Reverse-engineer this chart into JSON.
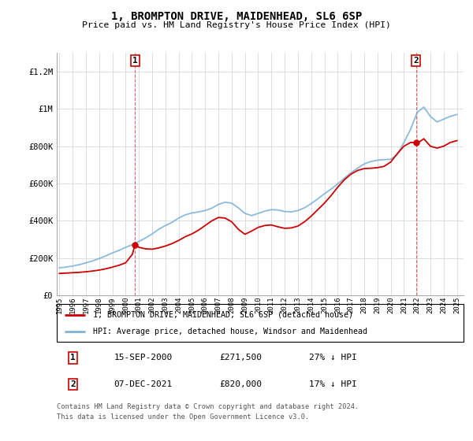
{
  "title": "1, BROMPTON DRIVE, MAIDENHEAD, SL6 6SP",
  "subtitle": "Price paid vs. HM Land Registry's House Price Index (HPI)",
  "legend_entry1": "1, BROMPTON DRIVE, MAIDENHEAD, SL6 6SP (detached house)",
  "legend_entry2": "HPI: Average price, detached house, Windsor and Maidenhead",
  "annotation1_date": "15-SEP-2000",
  "annotation1_price": "£271,500",
  "annotation1_hpi": "27% ↓ HPI",
  "annotation2_date": "07-DEC-2021",
  "annotation2_price": "£820,000",
  "annotation2_hpi": "17% ↓ HPI",
  "footnote1": "Contains HM Land Registry data © Crown copyright and database right 2024.",
  "footnote2": "This data is licensed under the Open Government Licence v3.0.",
  "ylim": [
    0,
    1300000
  ],
  "yticks": [
    0,
    200000,
    400000,
    600000,
    800000,
    1000000,
    1200000
  ],
  "ytick_labels": [
    "£0",
    "£200K",
    "£400K",
    "£600K",
    "£800K",
    "£1M",
    "£1.2M"
  ],
  "red_color": "#cc0000",
  "blue_color": "#7eb3d8",
  "marker1_x": 2000.71,
  "marker1_y": 271500,
  "marker2_x": 2021.92,
  "marker2_y": 820000,
  "hpi_years": [
    1995.0,
    1995.5,
    1996.0,
    1996.5,
    1997.0,
    1997.5,
    1998.0,
    1998.5,
    1999.0,
    1999.5,
    2000.0,
    2000.5,
    2001.0,
    2001.5,
    2002.0,
    2002.5,
    2003.0,
    2003.5,
    2004.0,
    2004.5,
    2005.0,
    2005.5,
    2006.0,
    2006.5,
    2007.0,
    2007.5,
    2008.0,
    2008.5,
    2009.0,
    2009.5,
    2010.0,
    2010.5,
    2011.0,
    2011.5,
    2012.0,
    2012.5,
    2013.0,
    2013.5,
    2014.0,
    2014.5,
    2015.0,
    2015.5,
    2016.0,
    2016.5,
    2017.0,
    2017.5,
    2018.0,
    2018.5,
    2019.0,
    2019.5,
    2020.0,
    2020.5,
    2021.0,
    2021.5,
    2022.0,
    2022.5,
    2023.0,
    2023.5,
    2024.0,
    2024.5,
    2025.0
  ],
  "hpi_values": [
    148000,
    152000,
    158000,
    165000,
    175000,
    185000,
    198000,
    212000,
    228000,
    242000,
    258000,
    272000,
    290000,
    308000,
    330000,
    355000,
    375000,
    392000,
    415000,
    432000,
    442000,
    448000,
    455000,
    468000,
    488000,
    500000,
    495000,
    470000,
    440000,
    428000,
    440000,
    452000,
    460000,
    458000,
    450000,
    448000,
    455000,
    470000,
    492000,
    518000,
    545000,
    570000,
    598000,
    628000,
    658000,
    682000,
    705000,
    718000,
    725000,
    728000,
    730000,
    755000,
    820000,
    890000,
    980000,
    1010000,
    960000,
    930000,
    945000,
    960000,
    970000
  ],
  "red_years": [
    1995.0,
    1995.5,
    1996.0,
    1996.5,
    1997.0,
    1997.5,
    1998.0,
    1998.5,
    1999.0,
    1999.5,
    2000.0,
    2000.5,
    2000.71,
    2001.0,
    2001.5,
    2002.0,
    2002.5,
    2003.0,
    2003.5,
    2004.0,
    2004.5,
    2005.0,
    2005.5,
    2006.0,
    2006.5,
    2007.0,
    2007.5,
    2008.0,
    2008.5,
    2009.0,
    2009.5,
    2010.0,
    2010.5,
    2011.0,
    2011.5,
    2012.0,
    2012.5,
    2013.0,
    2013.5,
    2014.0,
    2014.5,
    2015.0,
    2015.5,
    2016.0,
    2016.5,
    2017.0,
    2017.5,
    2018.0,
    2018.5,
    2019.0,
    2019.5,
    2020.0,
    2020.5,
    2021.0,
    2021.5,
    2021.92,
    2022.0,
    2022.5,
    2023.0,
    2023.5,
    2024.0,
    2024.5,
    2025.0
  ],
  "red_values": [
    118000,
    120000,
    122000,
    124000,
    127000,
    131000,
    136000,
    143000,
    152000,
    162000,
    175000,
    220000,
    271500,
    258000,
    250000,
    248000,
    255000,
    265000,
    278000,
    295000,
    315000,
    330000,
    350000,
    375000,
    400000,
    418000,
    415000,
    395000,
    355000,
    328000,
    345000,
    365000,
    375000,
    378000,
    368000,
    360000,
    362000,
    372000,
    395000,
    425000,
    460000,
    495000,
    535000,
    580000,
    620000,
    650000,
    670000,
    680000,
    682000,
    685000,
    692000,
    715000,
    760000,
    800000,
    820000,
    820000,
    815000,
    840000,
    800000,
    790000,
    800000,
    820000,
    830000
  ],
  "xmin": 1994.8,
  "xmax": 2025.5
}
